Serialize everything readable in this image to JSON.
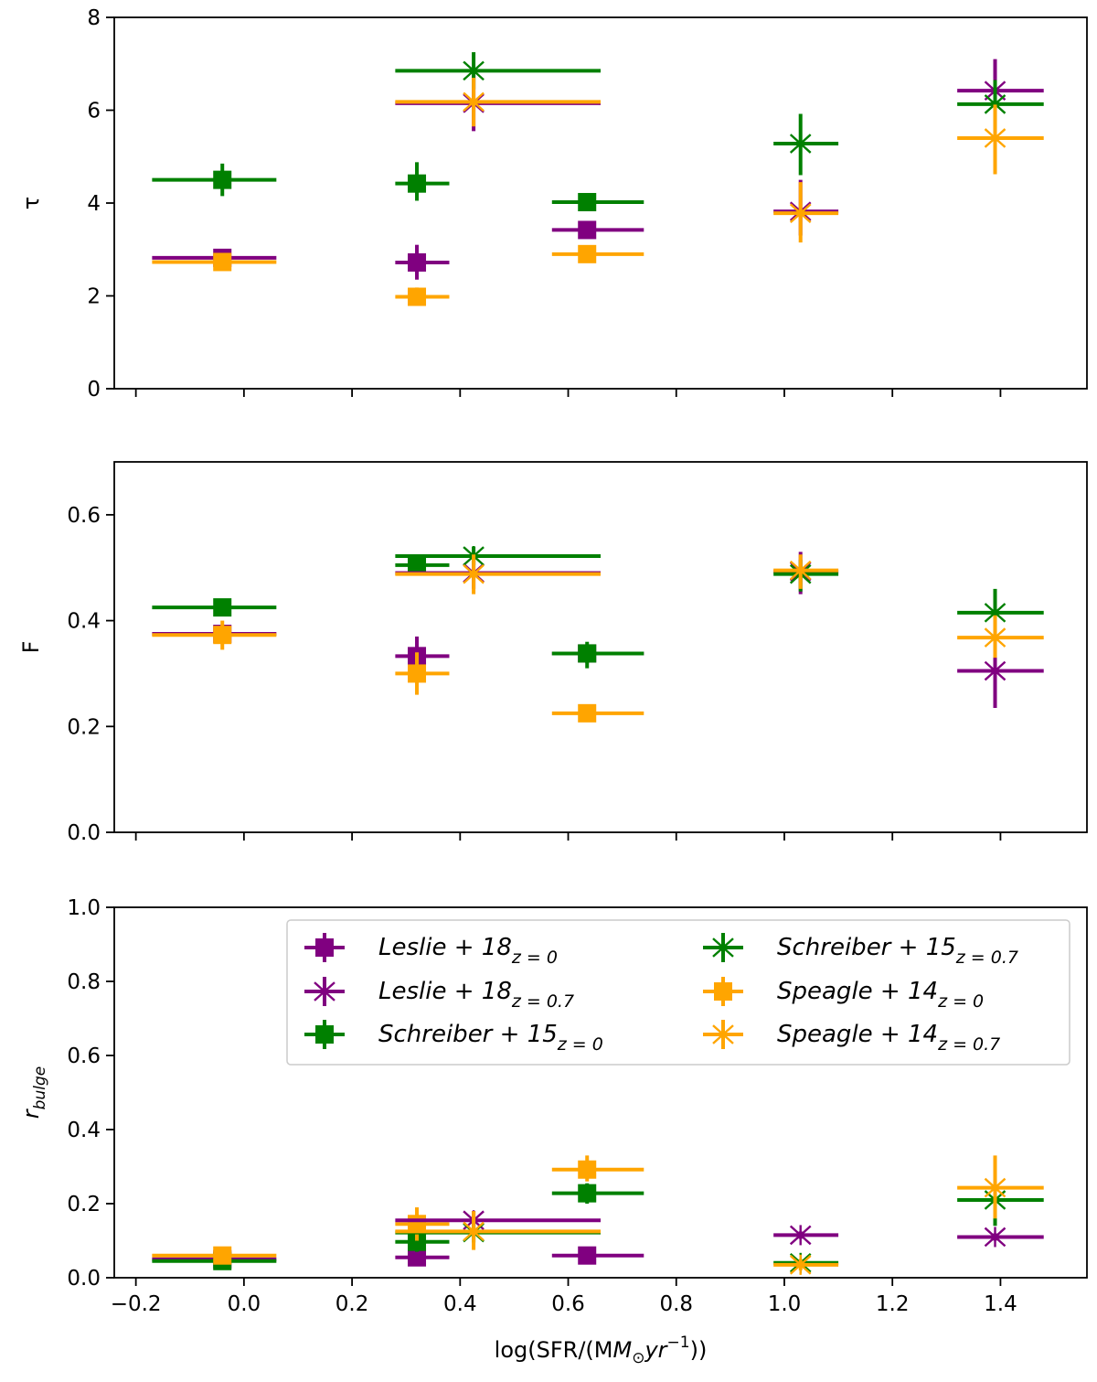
{
  "colors": {
    "Leslie": "#800080",
    "Schreiber": "#008000",
    "Speagle": "#FFA500"
  },
  "chart_data": [
    {
      "type": "scatter",
      "panel": "tau",
      "ylabel": "τ",
      "ylim": [
        0,
        8
      ],
      "xlim": [
        -0.24,
        1.56
      ],
      "yticks": [
        0,
        2,
        4,
        6,
        8
      ],
      "yticklabels": [
        "0",
        "2",
        "4",
        "6",
        "8"
      ],
      "series": [
        {
          "name": "Leslie + 18_{z=0}",
          "marker": "square",
          "color": "#800080",
          "points": [
            {
              "x": -0.04,
              "xlo": -0.17,
              "xhi": 0.06,
              "y": 2.82,
              "ylo": 2.65,
              "yhi": 3.0
            },
            {
              "x": 0.32,
              "xlo": 0.28,
              "xhi": 0.38,
              "y": 2.72,
              "ylo": 2.35,
              "yhi": 3.1
            },
            {
              "x": 0.635,
              "xlo": 0.57,
              "xhi": 0.74,
              "y": 3.42,
              "ylo": 3.3,
              "yhi": 3.55
            }
          ]
        },
        {
          "name": "Leslie + 18_{z=0.7}",
          "marker": "asterisk",
          "color": "#800080",
          "points": [
            {
              "x": 0.425,
              "xlo": 0.28,
              "xhi": 0.66,
              "y": 6.15,
              "ylo": 5.55,
              "yhi": 6.75
            },
            {
              "x": 1.03,
              "xlo": 0.98,
              "xhi": 1.1,
              "y": 3.82,
              "ylo": 3.3,
              "yhi": 4.5
            },
            {
              "x": 1.39,
              "xlo": 1.32,
              "xhi": 1.48,
              "y": 6.42,
              "ylo": 5.75,
              "yhi": 7.1
            }
          ]
        },
        {
          "name": "Schreiber + 15_{z=0}",
          "marker": "square",
          "color": "#008000",
          "points": [
            {
              "x": -0.04,
              "xlo": -0.17,
              "xhi": 0.06,
              "y": 4.5,
              "ylo": 4.15,
              "yhi": 4.85
            },
            {
              "x": 0.32,
              "xlo": 0.28,
              "xhi": 0.38,
              "y": 4.42,
              "ylo": 4.05,
              "yhi": 4.88
            },
            {
              "x": 0.635,
              "xlo": 0.57,
              "xhi": 0.74,
              "y": 4.02,
              "ylo": 3.85,
              "yhi": 4.2
            }
          ]
        },
        {
          "name": "Schreiber + 15_{z=0.7}",
          "marker": "asterisk",
          "color": "#008000",
          "points": [
            {
              "x": 0.425,
              "xlo": 0.28,
              "xhi": 0.66,
              "y": 6.85,
              "ylo": 6.45,
              "yhi": 7.25
            },
            {
              "x": 1.03,
              "xlo": 0.98,
              "xhi": 1.1,
              "y": 5.28,
              "ylo": 4.6,
              "yhi": 5.92
            },
            {
              "x": 1.39,
              "xlo": 1.32,
              "xhi": 1.48,
              "y": 6.13,
              "ylo": 5.6,
              "yhi": 6.65
            }
          ]
        },
        {
          "name": "Speagle + 14_{z=0}",
          "marker": "square",
          "color": "#FFA500",
          "points": [
            {
              "x": -0.04,
              "xlo": -0.17,
              "xhi": 0.06,
              "y": 2.73,
              "ylo": 2.55,
              "yhi": 2.92
            },
            {
              "x": 0.32,
              "xlo": 0.28,
              "xhi": 0.38,
              "y": 1.98,
              "ylo": 1.8,
              "yhi": 2.18
            },
            {
              "x": 0.635,
              "xlo": 0.57,
              "xhi": 0.74,
              "y": 2.9,
              "ylo": 2.75,
              "yhi": 3.05
            }
          ]
        },
        {
          "name": "Speagle + 14_{z=0.7}",
          "marker": "asterisk",
          "color": "#FFA500",
          "points": [
            {
              "x": 0.425,
              "xlo": 0.28,
              "xhi": 0.66,
              "y": 6.18,
              "ylo": 5.65,
              "yhi": 6.7
            },
            {
              "x": 1.03,
              "xlo": 0.98,
              "xhi": 1.1,
              "y": 3.78,
              "ylo": 3.15,
              "yhi": 4.45
            },
            {
              "x": 1.39,
              "xlo": 1.32,
              "xhi": 1.48,
              "y": 5.4,
              "ylo": 4.62,
              "yhi": 6.12
            }
          ]
        }
      ]
    },
    {
      "type": "scatter",
      "panel": "F",
      "ylabel": "F",
      "ylim": [
        0,
        0.7
      ],
      "xlim": [
        -0.24,
        1.56
      ],
      "yticks": [
        0,
        0.2,
        0.4,
        0.6
      ],
      "yticklabels": [
        "0.0",
        "0.2",
        "0.4",
        "0.6"
      ],
      "series": [
        {
          "name": "Leslie + 18_{z=0}",
          "marker": "square",
          "color": "#800080",
          "points": [
            {
              "x": -0.04,
              "xlo": -0.17,
              "xhi": 0.06,
              "y": 0.375,
              "ylo": 0.36,
              "yhi": 0.39
            },
            {
              "x": 0.32,
              "xlo": 0.28,
              "xhi": 0.38,
              "y": 0.333,
              "ylo": 0.3,
              "yhi": 0.37
            },
            {
              "x": 0.635,
              "xlo": 0.57,
              "xhi": 0.74,
              "y": 0.338,
              "ylo": 0.32,
              "yhi": 0.355
            }
          ]
        },
        {
          "name": "Leslie + 18_{z=0.7}",
          "marker": "asterisk",
          "color": "#800080",
          "points": [
            {
              "x": 0.425,
              "xlo": 0.28,
              "xhi": 0.66,
              "y": 0.49,
              "ylo": 0.46,
              "yhi": 0.52
            },
            {
              "x": 1.03,
              "xlo": 0.98,
              "xhi": 1.1,
              "y": 0.493,
              "ylo": 0.45,
              "yhi": 0.53
            },
            {
              "x": 1.39,
              "xlo": 1.32,
              "xhi": 1.48,
              "y": 0.305,
              "ylo": 0.235,
              "yhi": 0.375
            }
          ]
        },
        {
          "name": "Schreiber + 15_{z=0}",
          "marker": "square",
          "color": "#008000",
          "points": [
            {
              "x": -0.04,
              "xlo": -0.17,
              "xhi": 0.06,
              "y": 0.425,
              "ylo": 0.41,
              "yhi": 0.44
            },
            {
              "x": 0.32,
              "xlo": 0.28,
              "xhi": 0.38,
              "y": 0.505,
              "ylo": 0.49,
              "yhi": 0.52
            },
            {
              "x": 0.635,
              "xlo": 0.57,
              "xhi": 0.74,
              "y": 0.338,
              "ylo": 0.31,
              "yhi": 0.36
            }
          ]
        },
        {
          "name": "Schreiber + 15_{z=0.7}",
          "marker": "asterisk",
          "color": "#008000",
          "points": [
            {
              "x": 0.425,
              "xlo": 0.28,
              "xhi": 0.66,
              "y": 0.522,
              "ylo": 0.505,
              "yhi": 0.54
            },
            {
              "x": 1.03,
              "xlo": 0.98,
              "xhi": 1.1,
              "y": 0.488,
              "ylo": 0.455,
              "yhi": 0.515
            },
            {
              "x": 1.39,
              "xlo": 1.32,
              "xhi": 1.48,
              "y": 0.415,
              "ylo": 0.37,
              "yhi": 0.46
            }
          ]
        },
        {
          "name": "Speagle + 14_{z=0}",
          "marker": "square",
          "color": "#FFA500",
          "points": [
            {
              "x": -0.04,
              "xlo": -0.17,
              "xhi": 0.06,
              "y": 0.373,
              "ylo": 0.345,
              "yhi": 0.4
            },
            {
              "x": 0.32,
              "xlo": 0.28,
              "xhi": 0.38,
              "y": 0.3,
              "ylo": 0.26,
              "yhi": 0.34
            },
            {
              "x": 0.635,
              "xlo": 0.57,
              "xhi": 0.74,
              "y": 0.225,
              "ylo": 0.21,
              "yhi": 0.24
            }
          ]
        },
        {
          "name": "Speagle + 14_{z=0.7}",
          "marker": "asterisk",
          "color": "#FFA500",
          "points": [
            {
              "x": 0.425,
              "xlo": 0.28,
              "xhi": 0.66,
              "y": 0.488,
              "ylo": 0.45,
              "yhi": 0.525
            },
            {
              "x": 1.03,
              "xlo": 0.98,
              "xhi": 1.1,
              "y": 0.495,
              "ylo": 0.46,
              "yhi": 0.525
            },
            {
              "x": 1.39,
              "xlo": 1.32,
              "xhi": 1.48,
              "y": 0.368,
              "ylo": 0.33,
              "yhi": 0.41
            }
          ]
        }
      ]
    },
    {
      "type": "scatter",
      "panel": "r_bulge",
      "ylabel": "r",
      "ylabel_sub": "bulge",
      "ylim": [
        0,
        1.0
      ],
      "xlim": [
        -0.24,
        1.56
      ],
      "yticks": [
        0,
        0.2,
        0.4,
        0.6,
        0.8,
        1.0
      ],
      "yticklabels": [
        "0.0",
        "0.2",
        "0.4",
        "0.6",
        "0.8",
        "1.0"
      ],
      "xlabel": "log(SFR/(M",
      "xlabel_sun": "⊙",
      "xlabel_unit": "yr",
      "xlabel_exp": "−1",
      "xlabel_end": "))",
      "xticks": [
        -0.2,
        0.0,
        0.2,
        0.4,
        0.6,
        0.8,
        1.0,
        1.2,
        1.4
      ],
      "xticklabels": [
        "−0.2",
        "0.0",
        "0.2",
        "0.4",
        "0.6",
        "0.8",
        "1.0",
        "1.2",
        "1.4"
      ],
      "series": [
        {
          "name": "Leslie + 18_{z=0}",
          "marker": "square",
          "color": "#800080",
          "points": [
            {
              "x": -0.04,
              "xlo": -0.17,
              "xhi": 0.06,
              "y": 0.05,
              "ylo": 0.04,
              "yhi": 0.06
            },
            {
              "x": 0.32,
              "xlo": 0.28,
              "xhi": 0.38,
              "y": 0.055,
              "ylo": 0.04,
              "yhi": 0.07
            },
            {
              "x": 0.635,
              "xlo": 0.57,
              "xhi": 0.74,
              "y": 0.06,
              "ylo": 0.045,
              "yhi": 0.075
            }
          ]
        },
        {
          "name": "Leslie + 18_{z=0.7}",
          "marker": "asterisk",
          "color": "#800080",
          "points": [
            {
              "x": 0.425,
              "xlo": 0.28,
              "xhi": 0.66,
              "y": 0.155,
              "ylo": 0.13,
              "yhi": 0.18
            },
            {
              "x": 1.03,
              "xlo": 0.98,
              "xhi": 1.1,
              "y": 0.115,
              "ylo": 0.105,
              "yhi": 0.125
            },
            {
              "x": 1.39,
              "xlo": 1.32,
              "xhi": 1.48,
              "y": 0.11,
              "ylo": 0.1,
              "yhi": 0.12
            }
          ]
        },
        {
          "name": "Schreiber + 15_{z=0}",
          "marker": "square",
          "color": "#008000",
          "points": [
            {
              "x": -0.04,
              "xlo": -0.17,
              "xhi": 0.06,
              "y": 0.045,
              "ylo": 0.03,
              "yhi": 0.055
            },
            {
              "x": 0.32,
              "xlo": 0.28,
              "xhi": 0.38,
              "y": 0.097,
              "ylo": 0.07,
              "yhi": 0.125
            },
            {
              "x": 0.635,
              "xlo": 0.57,
              "xhi": 0.74,
              "y": 0.228,
              "ylo": 0.2,
              "yhi": 0.255
            }
          ]
        },
        {
          "name": "Schreiber + 15_{z=0.7}",
          "marker": "asterisk",
          "color": "#008000",
          "points": [
            {
              "x": 0.425,
              "xlo": 0.28,
              "xhi": 0.66,
              "y": 0.122,
              "ylo": 0.095,
              "yhi": 0.15
            },
            {
              "x": 1.03,
              "xlo": 0.98,
              "xhi": 1.1,
              "y": 0.04,
              "ylo": 0.03,
              "yhi": 0.05
            },
            {
              "x": 1.39,
              "xlo": 1.32,
              "xhi": 1.48,
              "y": 0.21,
              "ylo": 0.14,
              "yhi": 0.26
            }
          ]
        },
        {
          "name": "Speagle + 14_{z=0}",
          "marker": "square",
          "color": "#FFA500",
          "points": [
            {
              "x": -0.04,
              "xlo": -0.17,
              "xhi": 0.06,
              "y": 0.06,
              "ylo": 0.045,
              "yhi": 0.075
            },
            {
              "x": 0.32,
              "xlo": 0.28,
              "xhi": 0.38,
              "y": 0.145,
              "ylo": 0.1,
              "yhi": 0.19
            },
            {
              "x": 0.635,
              "xlo": 0.57,
              "xhi": 0.74,
              "y": 0.292,
              "ylo": 0.26,
              "yhi": 0.33
            }
          ]
        },
        {
          "name": "Speagle + 14_{z=0.7}",
          "marker": "asterisk",
          "color": "#FFA500",
          "points": [
            {
              "x": 0.425,
              "xlo": 0.28,
              "xhi": 0.66,
              "y": 0.125,
              "ylo": 0.075,
              "yhi": 0.18
            },
            {
              "x": 1.03,
              "xlo": 0.98,
              "xhi": 1.1,
              "y": 0.035,
              "ylo": 0.02,
              "yhi": 0.05
            },
            {
              "x": 1.39,
              "xlo": 1.32,
              "xhi": 1.48,
              "y": 0.243,
              "ylo": 0.16,
              "yhi": 0.33
            }
          ]
        }
      ]
    }
  ],
  "legend": {
    "placement": "upper-right of bottom panel",
    "entries": [
      {
        "base": "Leslie + 18",
        "sub": "z = 0",
        "marker": "square",
        "color": "#800080"
      },
      {
        "base": "Leslie + 18",
        "sub": "z = 0.7",
        "marker": "asterisk",
        "color": "#800080"
      },
      {
        "base": "Schreiber + 15",
        "sub": "z = 0",
        "marker": "square",
        "color": "#008000"
      },
      {
        "base": "Schreiber + 15",
        "sub": "z = 0.7",
        "marker": "asterisk",
        "color": "#008000"
      },
      {
        "base": "Speagle + 14",
        "sub": "z = 0",
        "marker": "square",
        "color": "#FFA500"
      },
      {
        "base": "Speagle + 14",
        "sub": "z = 0.7",
        "marker": "asterisk",
        "color": "#FFA500"
      }
    ]
  }
}
